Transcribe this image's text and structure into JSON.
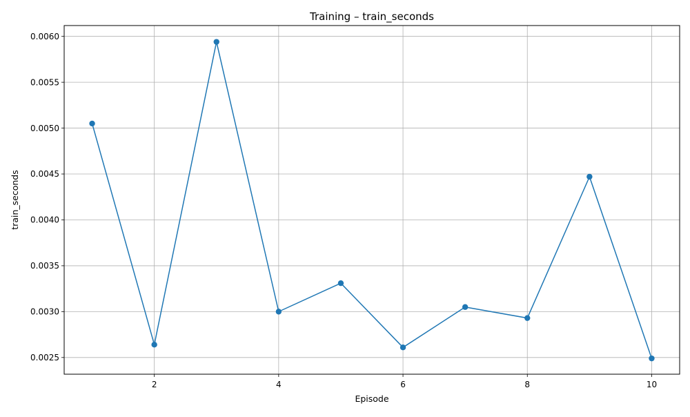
{
  "chart_data": {
    "type": "line",
    "title": "Training – train_seconds",
    "xlabel": "Episode",
    "ylabel": "train_seconds",
    "xlim": [
      0.55,
      10.45
    ],
    "ylim": [
      0.002318,
      0.006118
    ],
    "xticks": [
      2,
      4,
      6,
      8,
      10
    ],
    "xtick_labels": [
      "2",
      "4",
      "6",
      "8",
      "10"
    ],
    "yticks": [
      0.0025,
      0.003,
      0.0035,
      0.004,
      0.0045,
      0.005,
      0.0055,
      0.006
    ],
    "ytick_labels": [
      "0.0025",
      "0.0030",
      "0.0035",
      "0.0040",
      "0.0045",
      "0.0050",
      "0.0055",
      "0.0060"
    ],
    "grid": true,
    "series": [
      {
        "color": "#1f77b4",
        "marker": "circle",
        "x": [
          1,
          2,
          3,
          4,
          5,
          6,
          7,
          8,
          9,
          10
        ],
        "y": [
          0.00505,
          0.00264,
          0.00594,
          0.003,
          0.00331,
          0.00261,
          0.00305,
          0.00293,
          0.00447,
          0.00249
        ]
      }
    ]
  }
}
